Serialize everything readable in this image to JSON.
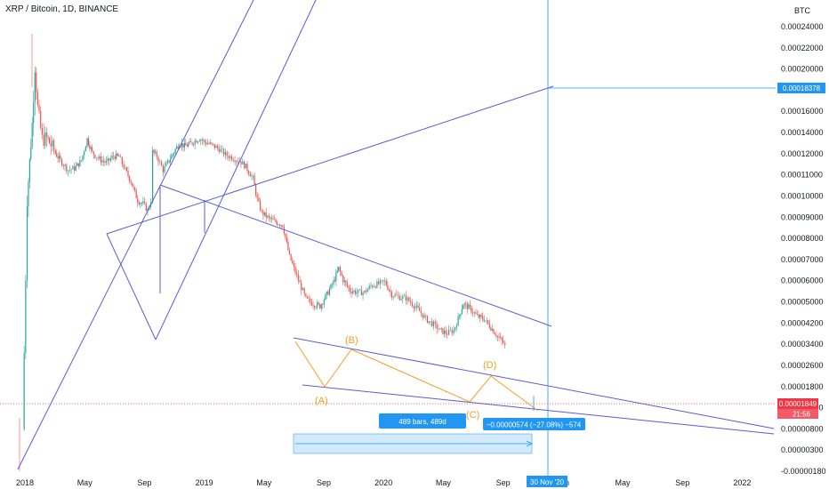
{
  "header": {
    "title": "XRP / Bitcoin, 1D, BINANCE"
  },
  "colors": {
    "up": "#26a69a",
    "down": "#ef5350",
    "trendline": "#5b5bd6",
    "crosshair": "#2196f3",
    "wave": "#f0a020",
    "price_tag": "#f23645",
    "cross_tag": "#2196f3",
    "measure_fill": "#cfe2f7"
  },
  "annotations": {
    "wave_labels": [
      "(A)",
      "(B)",
      "(C)",
      "(D)"
    ],
    "bars_range": "489 bars, 489d",
    "change_box": "−0.00000574 (−27.08%) −574"
  },
  "readouts": {
    "last_price": "0.00001849",
    "countdown": "21:56",
    "cross_price": "0.00018378",
    "cross_date": "30 Nov '20"
  },
  "chart_data": {
    "type": "candlestick",
    "title": "XRP / Bitcoin, 1D, BINANCE",
    "currency_label": "BTC",
    "y_scale": "log",
    "y_ticks": [
      "0.00024000",
      "0.00022000",
      "0.00020000",
      "0.00018000",
      "0.00016000",
      "0.00014000",
      "0.00012000",
      "0.00011000",
      "0.00010000",
      "0.00009000",
      "0.00008000",
      "0.00007000",
      "0.00006000",
      "0.00005000",
      "0.00004200",
      "0.00003400",
      "0.00002600",
      "0.00001800",
      "0.00001000",
      "0.00000800",
      "0.00000300",
      "-0.00000180"
    ],
    "x_ticks": [
      "2018",
      "May",
      "Sep",
      "2019",
      "May",
      "Sep",
      "2020",
      "May",
      "Sep",
      "Jan",
      "May",
      "Sep",
      "2022"
    ],
    "x_range": [
      "2017-12-15",
      "2022-04-10"
    ],
    "price_path": [
      [
        "2017-12-10",
        9.5e-06
      ],
      [
        "2017-12-20",
        6e-05
      ],
      [
        "2017-12-31",
        0.00011
      ],
      [
        "2018-01-06",
        0.000175
      ],
      [
        "2018-01-12",
        0.000125
      ],
      [
        "2018-01-22",
        9.75e-05
      ],
      [
        "2018-02-01",
        9.8e-05
      ],
      [
        "2018-02-10",
        9.3e-05
      ],
      [
        "2018-02-20",
        8.7e-05
      ],
      [
        "2018-03-03",
        8.2e-05
      ],
      [
        "2018-03-20",
        7.6e-05
      ],
      [
        "2018-04-03",
        7.7e-05
      ],
      [
        "2018-04-18",
        8.2e-05
      ],
      [
        "2018-05-01",
        9.75e-05
      ],
      [
        "2018-05-12",
        8.75e-05
      ],
      [
        "2018-05-28",
        8.3e-05
      ],
      [
        "2018-06-12",
        8.05e-05
      ],
      [
        "2018-06-28",
        8.5e-05
      ],
      [
        "2018-07-10",
        8.45e-05
      ],
      [
        "2018-07-24",
        7.6e-05
      ],
      [
        "2018-08-05",
        6.95e-05
      ],
      [
        "2018-08-20",
        5.95e-05
      ],
      [
        "2018-09-01",
        5.8e-05
      ],
      [
        "2018-09-11",
        5.5e-05
      ],
      [
        "2018-09-18",
        5.95e-05
      ],
      [
        "2018-09-22",
        8.8e-05
      ],
      [
        "2018-10-01",
        8.5e-05
      ],
      [
        "2018-10-15",
        7.6e-05
      ],
      [
        "2018-10-28",
        8.2e-05
      ],
      [
        "2018-11-08",
        8.8e-05
      ],
      [
        "2018-11-20",
        9.45e-05
      ],
      [
        "2018-12-01",
        9.2e-05
      ],
      [
        "2018-12-12",
        9.35e-05
      ],
      [
        "2018-12-24",
        9.6e-05
      ],
      [
        "2019-01-03",
        9.8e-05
      ],
      [
        "2019-01-15",
        9.5e-05
      ],
      [
        "2019-01-30",
        9.3e-05
      ],
      [
        "2019-02-15",
        9e-05
      ],
      [
        "2019-03-01",
        8.6e-05
      ],
      [
        "2019-03-15",
        8.4e-05
      ],
      [
        "2019-04-01",
        8.2e-05
      ],
      [
        "2019-04-15",
        7.8e-05
      ],
      [
        "2019-05-01",
        7.1e-05
      ],
      [
        "2019-05-10",
        6e-05
      ],
      [
        "2019-05-20",
        5.4e-05
      ],
      [
        "2019-06-05",
        5.15e-05
      ],
      [
        "2019-06-20",
        5e-05
      ],
      [
        "2019-07-05",
        4.9e-05
      ],
      [
        "2019-07-20",
        3.8e-05
      ],
      [
        "2019-08-05",
        3.25e-05
      ],
      [
        "2019-08-25",
        2.7e-05
      ],
      [
        "2019-09-10",
        2.6e-05
      ],
      [
        "2019-09-25",
        2.55e-05
      ],
      [
        "2019-10-10",
        2.8e-05
      ],
      [
        "2019-10-25",
        3.1e-05
      ],
      [
        "2019-11-05",
        3.45e-05
      ],
      [
        "2019-11-15",
        3.15e-05
      ],
      [
        "2019-11-30",
        2.9e-05
      ],
      [
        "2019-12-15",
        2.85e-05
      ],
      [
        "2020-01-01",
        2.85e-05
      ],
      [
        "2020-01-15",
        3e-05
      ],
      [
        "2020-02-01",
        3.05e-05
      ],
      [
        "2020-02-15",
        3.1e-05
      ],
      [
        "2020-03-01",
        2.8e-05
      ],
      [
        "2020-03-15",
        2.75e-05
      ],
      [
        "2020-04-01",
        2.72e-05
      ],
      [
        "2020-04-15",
        2.6e-05
      ],
      [
        "2020-05-01",
        2.45e-05
      ],
      [
        "2020-05-15",
        2.3e-05
      ],
      [
        "2020-06-01",
        2.2e-05
      ],
      [
        "2020-06-15",
        2.1e-05
      ],
      [
        "2020-07-01",
        2.05e-05
      ],
      [
        "2020-07-15",
        2.1e-05
      ],
      [
        "2020-07-25",
        2.3e-05
      ],
      [
        "2020-08-05",
        2.6e-05
      ],
      [
        "2020-08-20",
        2.5e-05
      ],
      [
        "2020-09-05",
        2.35e-05
      ],
      [
        "2020-09-20",
        2.3e-05
      ],
      [
        "2020-10-05",
        2.15e-05
      ],
      [
        "2020-10-20",
        2e-05
      ],
      [
        "2020-11-01",
        1.9e-05
      ],
      [
        "2020-11-05",
        1.849e-05
      ]
    ],
    "last_price": 1.849e-05,
    "crosshair": {
      "date": "2020-11-30",
      "price": 0.00018378
    }
  }
}
